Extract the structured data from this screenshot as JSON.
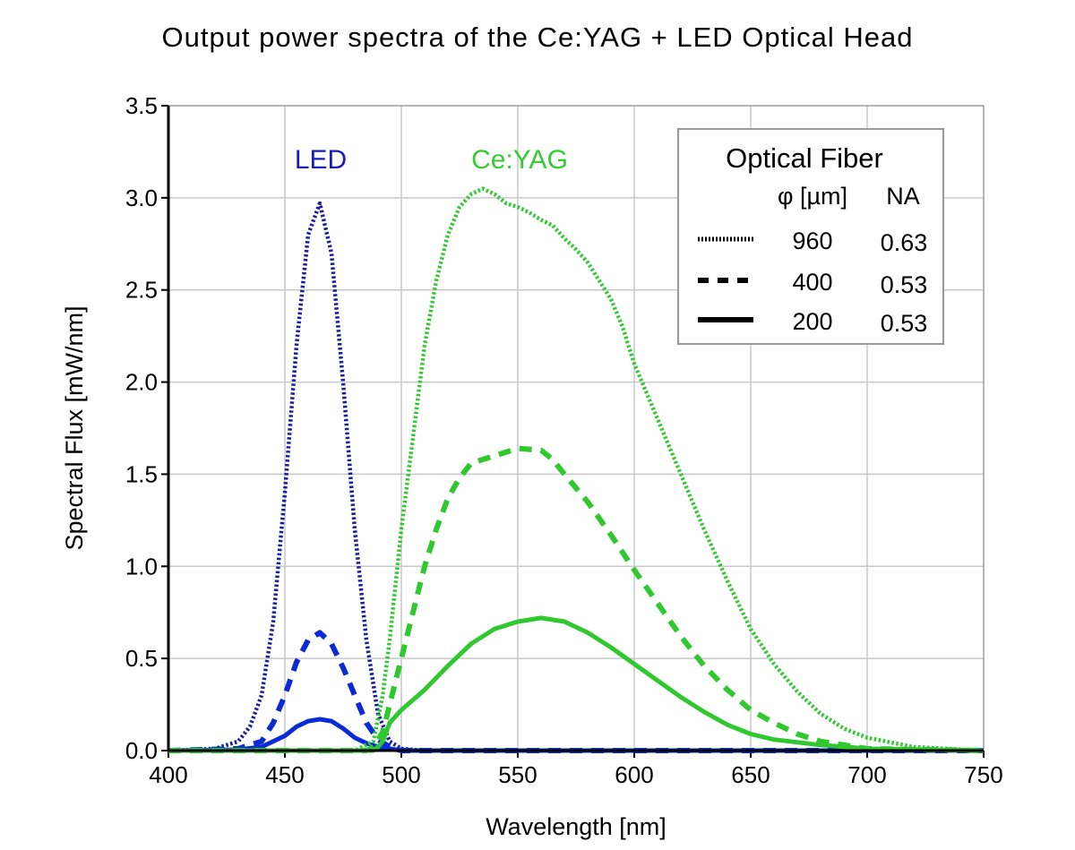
{
  "chart_data": {
    "type": "line",
    "title": "Output power spectra of the Ce:YAG + LED Optical Head",
    "xlabel": "Wavelength [nm]",
    "ylabel": "Spectral Flux [mW/nm]",
    "xlim": [
      400,
      750
    ],
    "ylim": [
      0,
      3.5
    ],
    "xticks": [
      400,
      450,
      500,
      550,
      600,
      650,
      700,
      750
    ],
    "yticks": [
      "0.0",
      "0.5",
      "1.0",
      "1.5",
      "2.0",
      "2.5",
      "3.0",
      "3.5"
    ],
    "grid": true,
    "annotations": [
      {
        "text": "LED",
        "color": "#1a1ab8"
      },
      {
        "text": "Ce:YAG",
        "color": "#33cc33"
      }
    ],
    "legend": {
      "placement": "top-right",
      "title": "Optical Fiber",
      "col1_header": "φ [µm]",
      "col2_header": "NA",
      "entries": [
        {
          "style": "dotted",
          "diameter": "960",
          "na": "0.63"
        },
        {
          "style": "dashed",
          "diameter": "400",
          "na": "0.53"
        },
        {
          "style": "solid",
          "diameter": "200",
          "na": "0.53"
        }
      ]
    },
    "colors": {
      "led_dotted": "#1c1ca0",
      "led": "#0a2ad8",
      "ceyag": "#2fc82f"
    },
    "series": [
      {
        "group": "LED",
        "style": "dotted",
        "fiber": "960",
        "x": [
          400,
          420,
          430,
          435,
          440,
          445,
          450,
          455,
          460,
          465,
          470,
          475,
          480,
          485,
          490,
          495,
          500,
          510,
          750
        ],
        "y": [
          0,
          0.01,
          0.05,
          0.13,
          0.3,
          0.7,
          1.4,
          2.2,
          2.8,
          2.97,
          2.7,
          2.0,
          1.2,
          0.6,
          0.2,
          0.05,
          0.01,
          0,
          0
        ]
      },
      {
        "group": "LED",
        "style": "dashed",
        "fiber": "400",
        "x": [
          400,
          430,
          440,
          445,
          450,
          455,
          460,
          465,
          470,
          475,
          480,
          485,
          490,
          495,
          500,
          750
        ],
        "y": [
          0,
          0.01,
          0.05,
          0.15,
          0.3,
          0.48,
          0.6,
          0.64,
          0.58,
          0.45,
          0.3,
          0.15,
          0.06,
          0.02,
          0,
          0
        ]
      },
      {
        "group": "LED",
        "style": "solid",
        "fiber": "200",
        "x": [
          400,
          430,
          440,
          450,
          455,
          460,
          465,
          470,
          475,
          480,
          485,
          490,
          495,
          500,
          750
        ],
        "y": [
          0,
          0.005,
          0.02,
          0.08,
          0.13,
          0.16,
          0.17,
          0.16,
          0.12,
          0.07,
          0.04,
          0.02,
          0.01,
          0,
          0
        ]
      },
      {
        "group": "Ce:YAG",
        "style": "dotted",
        "fiber": "960",
        "x": [
          400,
          480,
          488,
          492,
          495,
          500,
          505,
          510,
          515,
          520,
          525,
          530,
          535,
          540,
          545,
          550,
          555,
          560,
          565,
          570,
          575,
          580,
          585,
          590,
          595,
          600,
          610,
          620,
          630,
          640,
          650,
          660,
          670,
          680,
          690,
          700,
          720,
          750
        ],
        "y": [
          0,
          0,
          0.05,
          0.3,
          0.6,
          1.2,
          1.7,
          2.2,
          2.55,
          2.8,
          2.95,
          3.02,
          3.05,
          3.02,
          2.97,
          2.95,
          2.92,
          2.88,
          2.85,
          2.78,
          2.72,
          2.65,
          2.55,
          2.45,
          2.3,
          2.1,
          1.8,
          1.5,
          1.2,
          0.92,
          0.66,
          0.47,
          0.32,
          0.2,
          0.12,
          0.07,
          0.02,
          0
        ]
      },
      {
        "group": "Ce:YAG",
        "style": "dashed",
        "fiber": "400",
        "x": [
          400,
          485,
          488,
          492,
          495,
          500,
          505,
          510,
          515,
          520,
          525,
          530,
          540,
          550,
          560,
          565,
          570,
          580,
          590,
          600,
          610,
          620,
          630,
          640,
          650,
          660,
          670,
          680,
          700,
          750
        ],
        "y": [
          0,
          0,
          0.02,
          0.1,
          0.25,
          0.5,
          0.75,
          1.0,
          1.2,
          1.37,
          1.48,
          1.56,
          1.6,
          1.64,
          1.63,
          1.58,
          1.5,
          1.35,
          1.17,
          0.98,
          0.8,
          0.62,
          0.46,
          0.33,
          0.22,
          0.15,
          0.09,
          0.05,
          0.01,
          0
        ]
      },
      {
        "group": "Ce:YAG",
        "style": "solid",
        "fiber": "200",
        "x": [
          400,
          488,
          490,
          492,
          495,
          500,
          510,
          520,
          530,
          540,
          550,
          560,
          570,
          580,
          590,
          600,
          610,
          620,
          630,
          640,
          650,
          660,
          680,
          700,
          750
        ],
        "y": [
          0,
          0,
          0.02,
          0.05,
          0.15,
          0.22,
          0.33,
          0.46,
          0.58,
          0.66,
          0.7,
          0.72,
          0.7,
          0.64,
          0.56,
          0.47,
          0.38,
          0.29,
          0.21,
          0.14,
          0.09,
          0.06,
          0.03,
          0.01,
          0
        ]
      }
    ]
  }
}
